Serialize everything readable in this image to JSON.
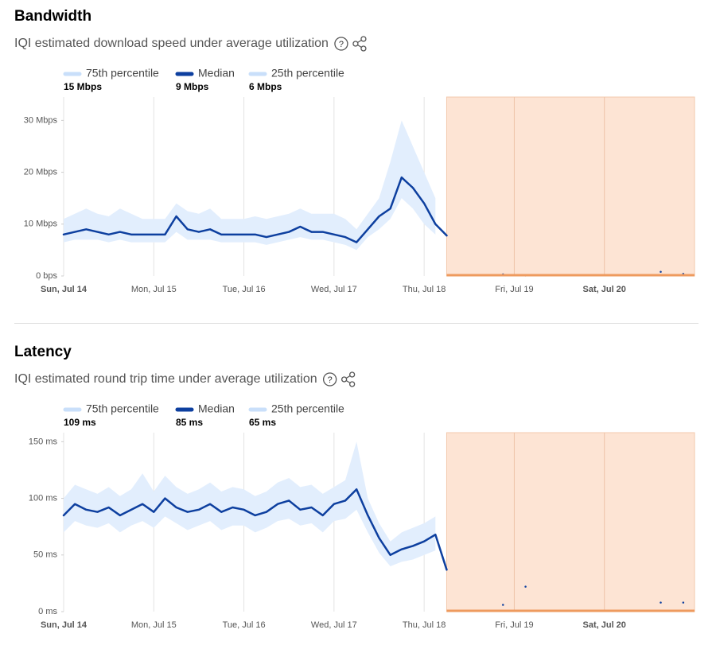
{
  "chart_data": [
    {
      "type": "line",
      "title": "Bandwidth",
      "subtitle": "IQI estimated download speed under average utilization",
      "categories": [
        "Sun, Jul 14",
        null,
        null,
        null,
        null,
        null,
        null,
        null,
        "Mon, Jul 15",
        null,
        null,
        null,
        null,
        null,
        null,
        null,
        "Tue, Jul 16",
        null,
        null,
        null,
        null,
        null,
        null,
        null,
        "Wed, Jul 17",
        null,
        null,
        null,
        null,
        null,
        null,
        null,
        "Thu, Jul 18",
        null,
        null,
        null,
        null,
        null,
        null,
        null,
        "Fri, Jul 19",
        null,
        null,
        null,
        null,
        null,
        null,
        null,
        "Sat, Jul 20",
        null,
        null,
        null,
        null,
        null,
        null,
        null,
        null
      ],
      "series": [
        {
          "name": "75th percentile",
          "summary": "15 Mbps",
          "color": "#c9dffa",
          "values": [
            11,
            12,
            13,
            12,
            11.5,
            13,
            12,
            11,
            11,
            11,
            14,
            12.5,
            12,
            13,
            11,
            11,
            11,
            11.5,
            11,
            11.5,
            12,
            13,
            12,
            12,
            12,
            11,
            9,
            12,
            15,
            22,
            30,
            25,
            20,
            15,
            null,
            null,
            null,
            null,
            null,
            null,
            null,
            null,
            null,
            null,
            null,
            null,
            null,
            null,
            null,
            null,
            null,
            null,
            null,
            null,
            null,
            null,
            null
          ]
        },
        {
          "name": "Median",
          "summary": "9 Mbps",
          "color": "#0d3f9f",
          "values": [
            8,
            8.5,
            9,
            8.5,
            8,
            8.5,
            8,
            8,
            8,
            8,
            11.5,
            9,
            8.5,
            9,
            8,
            8,
            8,
            8,
            7.5,
            8,
            8.5,
            9.5,
            8.5,
            8.5,
            8,
            7.5,
            6.5,
            9,
            11.5,
            13,
            19,
            17,
            14,
            10,
            7.8,
            null,
            null,
            null,
            null,
            0.3,
            null,
            0.1,
            null,
            null,
            null,
            null,
            null,
            null,
            null,
            null,
            null,
            null,
            null,
            0.8,
            null,
            0.4,
            null
          ]
        },
        {
          "name": "25th percentile",
          "summary": "6 Mbps",
          "color": "#c9dffa",
          "values": [
            6.5,
            7,
            7,
            7,
            6.5,
            7,
            6.5,
            6.5,
            6.5,
            6.5,
            8.5,
            7,
            7,
            7,
            6.5,
            6.5,
            6.5,
            6.5,
            6,
            6.5,
            7,
            7.5,
            7,
            7,
            6.5,
            6,
            5,
            7.5,
            9,
            11,
            15,
            13,
            10,
            8,
            null,
            null,
            null,
            null,
            null,
            null,
            null,
            null,
            null,
            null,
            null,
            null,
            null,
            null,
            null,
            null,
            null,
            null,
            null,
            null,
            null,
            null,
            null
          ]
        }
      ],
      "ylim": [
        0,
        34.5
      ],
      "yticks": [
        {
          "value": 0,
          "label": "0 bps"
        },
        {
          "value": 10,
          "label": "10 Mbps"
        },
        {
          "value": 20,
          "label": "20 Mbps"
        },
        {
          "value": 30,
          "label": "30 Mbps"
        }
      ],
      "grid": true
    },
    {
      "type": "line",
      "title": "Latency",
      "subtitle": "IQI estimated round trip time under average utilization",
      "categories": [
        "Sun, Jul 14",
        null,
        null,
        null,
        null,
        null,
        null,
        null,
        "Mon, Jul 15",
        null,
        null,
        null,
        null,
        null,
        null,
        null,
        "Tue, Jul 16",
        null,
        null,
        null,
        null,
        null,
        null,
        null,
        "Wed, Jul 17",
        null,
        null,
        null,
        null,
        null,
        null,
        null,
        "Thu, Jul 18",
        null,
        null,
        null,
        null,
        null,
        null,
        null,
        "Fri, Jul 19",
        null,
        null,
        null,
        null,
        null,
        null,
        null,
        "Sat, Jul 20",
        null,
        null,
        null,
        null,
        null,
        null,
        null,
        null
      ],
      "series": [
        {
          "name": "75th percentile",
          "summary": "109 ms",
          "color": "#c9dffa",
          "values": [
            100,
            112,
            108,
            104,
            110,
            102,
            108,
            122,
            106,
            120,
            110,
            104,
            108,
            114,
            106,
            110,
            108,
            102,
            106,
            114,
            118,
            110,
            112,
            104,
            110,
            116,
            150,
            100,
            78,
            62,
            70,
            74,
            78,
            84,
            null,
            null,
            null,
            null,
            null,
            null,
            null,
            null,
            null,
            null,
            null,
            null,
            null,
            null,
            null,
            null,
            null,
            null,
            null,
            null,
            null,
            null,
            null
          ]
        },
        {
          "name": "Median",
          "summary": "85 ms",
          "color": "#0d3f9f",
          "values": [
            85,
            95,
            90,
            88,
            92,
            85,
            90,
            95,
            88,
            100,
            92,
            88,
            90,
            95,
            88,
            92,
            90,
            85,
            88,
            95,
            98,
            90,
            92,
            85,
            95,
            98,
            108,
            85,
            65,
            50,
            55,
            58,
            62,
            68,
            37,
            null,
            null,
            null,
            null,
            6,
            null,
            22,
            null,
            null,
            null,
            null,
            null,
            null,
            null,
            null,
            null,
            null,
            null,
            8,
            null,
            8,
            null
          ]
        },
        {
          "name": "25th percentile",
          "summary": "65 ms",
          "color": "#c9dffa",
          "values": [
            70,
            80,
            76,
            74,
            78,
            70,
            76,
            80,
            74,
            84,
            78,
            72,
            76,
            80,
            72,
            76,
            76,
            70,
            74,
            80,
            82,
            76,
            78,
            70,
            80,
            82,
            90,
            70,
            52,
            40,
            44,
            46,
            50,
            54,
            null,
            null,
            null,
            null,
            null,
            null,
            null,
            null,
            null,
            null,
            null,
            null,
            null,
            null,
            null,
            null,
            null,
            null,
            null,
            null,
            null,
            null,
            null
          ]
        }
      ],
      "ylim": [
        0,
        158
      ],
      "yticks": [
        {
          "value": 0,
          "label": "0 ms"
        },
        {
          "value": 50,
          "label": "50 ms"
        },
        {
          "value": 100,
          "label": "100 ms"
        },
        {
          "value": 150,
          "label": "150 ms"
        }
      ],
      "grid": true
    }
  ]
}
